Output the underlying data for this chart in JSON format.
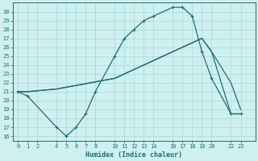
{
  "xlabel": "Humidex (Indice chaleur)",
  "bg_color": "#cff0f0",
  "grid_color": "#a8d8d8",
  "line_color": "#1e6e6e",
  "xlim": [
    -0.5,
    24.5
  ],
  "ylim": [
    15.5,
    31.0
  ],
  "xticks": [
    0,
    1,
    2,
    4,
    5,
    6,
    7,
    8,
    10,
    11,
    12,
    13,
    14,
    16,
    17,
    18,
    19,
    20,
    22,
    23
  ],
  "yticks": [
    16,
    17,
    18,
    19,
    20,
    21,
    22,
    23,
    24,
    25,
    26,
    27,
    28,
    29,
    30
  ],
  "curve1_x": [
    0,
    1,
    4,
    5,
    6,
    7,
    8,
    10,
    11,
    12,
    13,
    14,
    16,
    17,
    18,
    19,
    20,
    22,
    23
  ],
  "curve1_y": [
    21.0,
    20.5,
    17.0,
    16.0,
    17.0,
    18.5,
    21.0,
    25.0,
    27.0,
    28.0,
    29.0,
    29.5,
    30.5,
    30.5,
    29.5,
    25.5,
    22.5,
    18.5,
    18.5
  ],
  "curve2_x": [
    0,
    1,
    4,
    5,
    6,
    7,
    8,
    10,
    11,
    12,
    13,
    14,
    16,
    17,
    18,
    19,
    20,
    22,
    23
  ],
  "curve2_y": [
    21.0,
    21.0,
    21.3,
    21.5,
    21.7,
    21.9,
    22.1,
    22.5,
    23.0,
    23.5,
    24.0,
    24.5,
    25.5,
    26.0,
    26.5,
    27.0,
    25.5,
    22.0,
    19.0
  ],
  "curve3_x": [
    0,
    1,
    4,
    5,
    6,
    7,
    8,
    10,
    11,
    12,
    13,
    14,
    16,
    17,
    18,
    19,
    20,
    22,
    23
  ],
  "curve3_y": [
    21.0,
    21.0,
    21.3,
    21.5,
    21.7,
    21.9,
    22.1,
    22.5,
    23.0,
    23.5,
    24.0,
    24.5,
    25.5,
    26.0,
    26.5,
    27.0,
    25.5,
    18.5,
    18.5
  ]
}
